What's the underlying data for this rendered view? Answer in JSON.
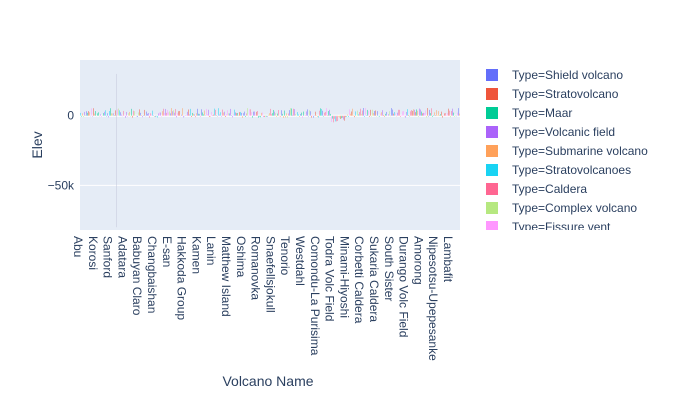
{
  "chart_data": {
    "type": "bar",
    "xlabel": "Volcano Name",
    "ylabel": "Elev",
    "y_ticks": [
      {
        "value": 0,
        "label": "0"
      },
      {
        "value": -50000,
        "label": "−50k"
      }
    ],
    "ylim": [
      -82000,
      40000
    ],
    "x_tick_labels": [
      "Abu",
      "Korosi",
      "Sanford",
      "Adatara",
      "Babuyan Claro",
      "Changbaishan",
      "E-san",
      "Hakkoda Group",
      "Kamen",
      "Lanin",
      "Matthew Island",
      "Oshima",
      "Romanovka",
      "Snaefellsjokull",
      "Tenorio",
      "Westdahl",
      "Comondu-La Purisima",
      "Todra Volc Field",
      "Minami-Hiyoshi",
      "Corbetti Caldera",
      "Sukaria Caldera",
      "South Sister",
      "Durango Volc Field",
      "Amorong",
      "Nipesotsu-Upepesanke",
      "Lambafit"
    ],
    "legend": {
      "placement": "right",
      "entries": [
        {
          "label": "Type=Shield volcano",
          "color": "#636efa"
        },
        {
          "label": "Type=Stratovolcano",
          "color": "#EF553B"
        },
        {
          "label": "Type=Maar",
          "color": "#00cc96"
        },
        {
          "label": "Type=Volcanic field",
          "color": "#ab63fa"
        },
        {
          "label": "Type=Submarine volcano",
          "color": "#FFA15A"
        },
        {
          "label": "Type=Stratovolcanoes",
          "color": "#19d3f3"
        },
        {
          "label": "Type=Caldera",
          "color": "#FF6692"
        },
        {
          "label": "Type=Complex volcano",
          "color": "#B6E880"
        },
        {
          "label": "Type=Fissure vent",
          "color": "#FF97FF"
        }
      ]
    },
    "grid": true,
    "note_bars": "Hundreds of very thin bars, elevations roughly between -6000 and 6000 m"
  }
}
